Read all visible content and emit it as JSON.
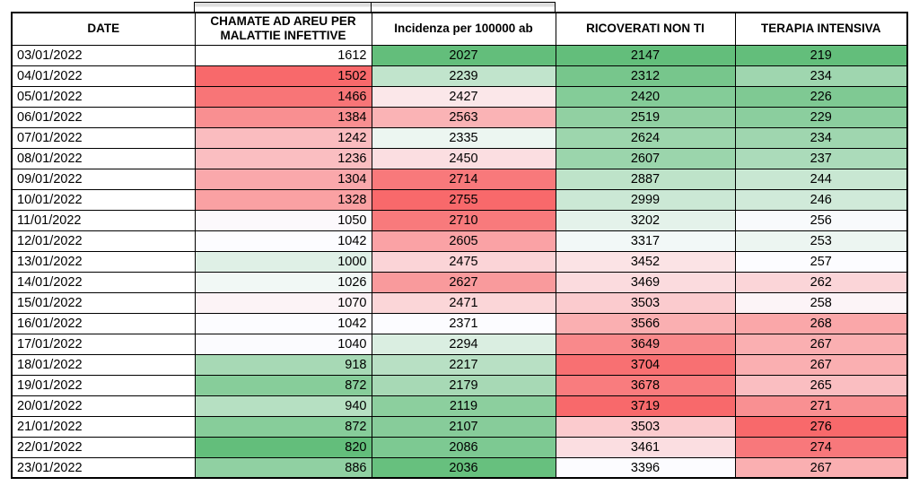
{
  "page": {
    "background": "#ffffff",
    "grid_border_color": "#000000"
  },
  "chart_data": {
    "type": "table",
    "columns": [
      {
        "id": "date",
        "label": "DATE",
        "align": "left"
      },
      {
        "id": "chiamate",
        "label": "CHAMATE AD AREU PER MALATTIE INFETTIVE",
        "align": "right"
      },
      {
        "id": "incidenza",
        "label": "Incidenza per 100000 ab",
        "align": "center"
      },
      {
        "id": "ricoverati",
        "label": "RICOVERATI NON TI",
        "align": "center"
      },
      {
        "id": "terapia",
        "label": "TERAPIA INTENSIVA",
        "align": "center"
      }
    ],
    "rows": [
      {
        "date": "03/01/2022",
        "chiamate": 1612,
        "incidenza": 2027,
        "ricoverati": 2147,
        "terapia": 219
      },
      {
        "date": "04/01/2022",
        "chiamate": 1502,
        "incidenza": 2239,
        "ricoverati": 2312,
        "terapia": 234
      },
      {
        "date": "05/01/2022",
        "chiamate": 1466,
        "incidenza": 2427,
        "ricoverati": 2420,
        "terapia": 226
      },
      {
        "date": "06/01/2022",
        "chiamate": 1384,
        "incidenza": 2563,
        "ricoverati": 2519,
        "terapia": 229
      },
      {
        "date": "07/01/2022",
        "chiamate": 1242,
        "incidenza": 2335,
        "ricoverati": 2624,
        "terapia": 234
      },
      {
        "date": "08/01/2022",
        "chiamate": 1236,
        "incidenza": 2450,
        "ricoverati": 2607,
        "terapia": 237
      },
      {
        "date": "09/01/2022",
        "chiamate": 1304,
        "incidenza": 2714,
        "ricoverati": 2887,
        "terapia": 244
      },
      {
        "date": "10/01/2022",
        "chiamate": 1328,
        "incidenza": 2755,
        "ricoverati": 2999,
        "terapia": 246
      },
      {
        "date": "11/01/2022",
        "chiamate": 1050,
        "incidenza": 2710,
        "ricoverati": 3202,
        "terapia": 256
      },
      {
        "date": "12/01/2022",
        "chiamate": 1042,
        "incidenza": 2605,
        "ricoverati": 3317,
        "terapia": 253
      },
      {
        "date": "13/01/2022",
        "chiamate": 1000,
        "incidenza": 2475,
        "ricoverati": 3452,
        "terapia": 257
      },
      {
        "date": "14/01/2022",
        "chiamate": 1026,
        "incidenza": 2627,
        "ricoverati": 3469,
        "terapia": 262
      },
      {
        "date": "15/01/2022",
        "chiamate": 1070,
        "incidenza": 2471,
        "ricoverati": 3503,
        "terapia": 258
      },
      {
        "date": "16/01/2022",
        "chiamate": 1042,
        "incidenza": 2371,
        "ricoverati": 3566,
        "terapia": 268
      },
      {
        "date": "17/01/2022",
        "chiamate": 1040,
        "incidenza": 2294,
        "ricoverati": 3649,
        "terapia": 267
      },
      {
        "date": "18/01/2022",
        "chiamate": 918,
        "incidenza": 2217,
        "ricoverati": 3704,
        "terapia": 267
      },
      {
        "date": "19/01/2022",
        "chiamate": 872,
        "incidenza": 2179,
        "ricoverati": 3678,
        "terapia": 265
      },
      {
        "date": "20/01/2022",
        "chiamate": 940,
        "incidenza": 2119,
        "ricoverati": 3719,
        "terapia": 271
      },
      {
        "date": "21/01/2022",
        "chiamate": 872,
        "incidenza": 2107,
        "ricoverati": 3503,
        "terapia": 276
      },
      {
        "date": "22/01/2022",
        "chiamate": 820,
        "incidenza": 2086,
        "ricoverati": 3461,
        "terapia": 274
      },
      {
        "date": "23/01/2022",
        "chiamate": 886,
        "incidenza": 2036,
        "ricoverati": 3396,
        "terapia": 267
      }
    ],
    "conditional_formatting": {
      "type": "3-color-scale",
      "low_color": "#63BE7B",
      "mid_color": "#FCFCFF",
      "high_color": "#F8696B",
      "midpoint": "median",
      "applies_to": [
        "chiamate",
        "incidenza",
        "ricoverati",
        "terapia"
      ],
      "chiamate_scale_excludes_first_row": true,
      "first_chiamate_cell_fill": "#FFFFFF"
    }
  }
}
